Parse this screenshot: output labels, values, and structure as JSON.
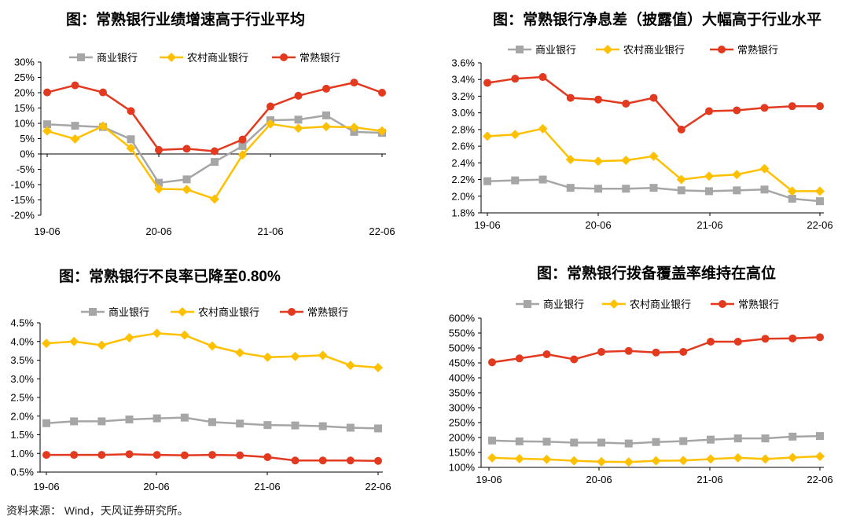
{
  "colors": {
    "commercial": "#A6A6A6",
    "rural": "#FFC000",
    "changshu": "#E2391F"
  },
  "source": "资料来源： Wind，天风证券研究所。",
  "chart_data": [
    {
      "type": "line",
      "title": "图：常熟银行业绩增速高于行业平均",
      "x_tick_labels": [
        "19-06",
        "20-06",
        "21-06",
        "22-06"
      ],
      "y_tick_labels": [
        "30%",
        "25%",
        "20%",
        "15%",
        "10%",
        "5%",
        "0%",
        "-5%",
        "-10%",
        "-15%",
        "-20%"
      ],
      "ylim": [
        -20,
        30
      ],
      "series": [
        {
          "name": "商业银行",
          "values": [
            9.7,
            9.2,
            8.8,
            4.8,
            -9.4,
            -8.3,
            -2.6,
            2.6,
            11.0,
            11.2,
            12.6,
            7.2,
            6.9
          ]
        },
        {
          "name": "农村商业银行",
          "values": [
            7.5,
            4.9,
            9.1,
            1.9,
            -11.4,
            -11.6,
            -14.7,
            -0.3,
            9.8,
            8.4,
            8.9,
            8.7,
            7.5
          ]
        },
        {
          "name": "常熟银行",
          "values": [
            20.1,
            22.4,
            20.1,
            14.0,
            1.3,
            1.7,
            0.9,
            4.7,
            15.5,
            19.0,
            21.3,
            23.3,
            20.0
          ]
        }
      ]
    },
    {
      "type": "line",
      "title": "图：常熟银行净息差（披露值）大幅高于行业水平",
      "x_tick_labels": [
        "19-06",
        "20-06",
        "21-06",
        "22-06"
      ],
      "y_tick_labels": [
        "3.6%",
        "3.4%",
        "3.2%",
        "3.0%",
        "2.8%",
        "2.6%",
        "2.4%",
        "2.2%",
        "2.0%",
        "1.8%"
      ],
      "ylim": [
        1.8,
        3.6
      ],
      "series": [
        {
          "name": "商业银行",
          "values": [
            2.18,
            2.19,
            2.2,
            2.1,
            2.09,
            2.09,
            2.1,
            2.07,
            2.06,
            2.07,
            2.08,
            1.97,
            1.94
          ]
        },
        {
          "name": "农村商业银行",
          "values": [
            2.72,
            2.74,
            2.81,
            2.44,
            2.42,
            2.43,
            2.48,
            2.2,
            2.24,
            2.26,
            2.33,
            2.06,
            2.06
          ]
        },
        {
          "name": "常熟银行",
          "values": [
            3.36,
            3.41,
            3.43,
            3.18,
            3.16,
            3.11,
            3.18,
            2.8,
            3.02,
            3.03,
            3.06,
            3.08,
            3.08
          ]
        }
      ]
    },
    {
      "type": "line",
      "title": "图：常熟银行不良率已降至0.80%",
      "x_tick_labels": [
        "19-06",
        "20-06",
        "21-06",
        "22-06"
      ],
      "y_tick_labels": [
        "4.5%",
        "4.0%",
        "3.5%",
        "3.0%",
        "2.5%",
        "2.0%",
        "1.5%",
        "1.0%",
        "0.5%"
      ],
      "ylim": [
        0.5,
        4.5
      ],
      "series": [
        {
          "name": "商业银行",
          "values": [
            1.81,
            1.86,
            1.86,
            1.91,
            1.94,
            1.96,
            1.84,
            1.8,
            1.76,
            1.75,
            1.73,
            1.69,
            1.67
          ]
        },
        {
          "name": "农村商业银行",
          "values": [
            3.95,
            4.0,
            3.9,
            4.1,
            4.22,
            4.17,
            3.88,
            3.7,
            3.58,
            3.6,
            3.63,
            3.36,
            3.3
          ]
        },
        {
          "name": "常熟银行",
          "values": [
            0.96,
            0.96,
            0.96,
            0.98,
            0.96,
            0.95,
            0.96,
            0.95,
            0.9,
            0.81,
            0.81,
            0.81,
            0.8
          ]
        }
      ]
    },
    {
      "type": "line",
      "title": "图：常熟银行拨备覆盖率维持在高位",
      "x_tick_labels": [
        "19-06",
        "20-06",
        "21-06",
        "22-06"
      ],
      "y_tick_labels": [
        "600%",
        "550%",
        "500%",
        "450%",
        "400%",
        "350%",
        "300%",
        "250%",
        "200%",
        "150%",
        "100%"
      ],
      "ylim": [
        100,
        600
      ],
      "series": [
        {
          "name": "商业银行",
          "values": [
            190,
            187,
            186,
            183,
            183,
            180,
            185,
            188,
            193,
            197,
            197,
            203,
            205
          ]
        },
        {
          "name": "农村商业银行",
          "values": [
            132,
            129,
            127,
            122,
            119,
            118,
            122,
            123,
            128,
            132,
            128,
            133,
            137
          ]
        },
        {
          "name": "常熟银行",
          "values": [
            452,
            465,
            479,
            462,
            487,
            490,
            485,
            487,
            521,
            521,
            531,
            532,
            536
          ]
        }
      ]
    }
  ]
}
